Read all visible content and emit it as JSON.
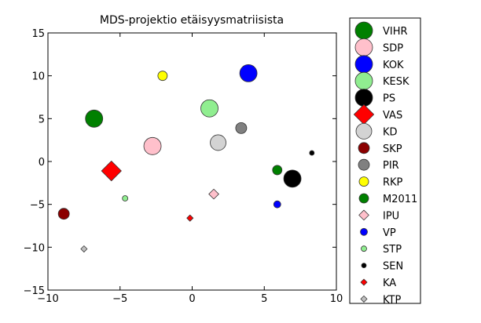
{
  "chart_data": {
    "type": "scatter",
    "title": "MDS-projektio etäisyysmatriisista",
    "xlabel": "",
    "ylabel": "",
    "xlim": [
      -10,
      10
    ],
    "ylim": [
      -15,
      15
    ],
    "xticks": [
      -10,
      -5,
      0,
      5,
      10
    ],
    "yticks": [
      -15,
      -10,
      -5,
      0,
      5,
      10,
      15
    ],
    "xtick_labels": [
      "−10",
      "−5",
      "0",
      "5",
      "10"
    ],
    "ytick_labels": [
      "−15",
      "−10",
      "−5",
      "0",
      "5",
      "10",
      "15"
    ],
    "grid": false,
    "legend_placement": "outside-right",
    "points": [
      {
        "name": "VIHR",
        "x": -6.8,
        "y": 5.0,
        "color": "#008000",
        "shape": "circle",
        "size": 11
      },
      {
        "name": "SDP",
        "x": -2.75,
        "y": 1.8,
        "color": "#ffc0cb",
        "shape": "circle",
        "size": 11
      },
      {
        "name": "KOK",
        "x": 3.9,
        "y": 10.3,
        "color": "#0000ff",
        "shape": "circle",
        "size": 11
      },
      {
        "name": "KESK",
        "x": 1.2,
        "y": 6.2,
        "color": "#90ee90",
        "shape": "circle",
        "size": 11
      },
      {
        "name": "PS",
        "x": 6.95,
        "y": -2.0,
        "color": "#000000",
        "shape": "circle",
        "size": 11
      },
      {
        "name": "VAS",
        "x": -5.6,
        "y": -1.1,
        "color": "#ff0000",
        "shape": "diamond",
        "size": 11
      },
      {
        "name": "KD",
        "x": 1.8,
        "y": 2.2,
        "color": "#d3d3d3",
        "shape": "circle",
        "size": 10
      },
      {
        "name": "SKP",
        "x": -8.9,
        "y": -6.1,
        "color": "#8b0000",
        "shape": "circle",
        "size": 7
      },
      {
        "name": "PIR",
        "x": 3.4,
        "y": 3.9,
        "color": "#808080",
        "shape": "circle",
        "size": 7
      },
      {
        "name": "RKP",
        "x": -2.05,
        "y": 10.0,
        "color": "#ffff00",
        "shape": "circle",
        "size": 6
      },
      {
        "name": "M2011",
        "x": 5.9,
        "y": -1.0,
        "color": "#008000",
        "shape": "circle",
        "size": 6
      },
      {
        "name": "IPU",
        "x": 1.5,
        "y": -3.8,
        "color": "#ffc0cb",
        "shape": "diamond",
        "size": 5.5
      },
      {
        "name": "VP",
        "x": 5.9,
        "y": -5.0,
        "color": "#0000ff",
        "shape": "circle",
        "size": 4.5
      },
      {
        "name": "STP",
        "x": -4.65,
        "y": -4.3,
        "color": "#90ee90",
        "shape": "circle",
        "size": 3.5
      },
      {
        "name": "SEN",
        "x": 8.3,
        "y": 1.0,
        "color": "#000000",
        "shape": "circle",
        "size": 3
      },
      {
        "name": "KA",
        "x": -0.15,
        "y": -6.6,
        "color": "#ff0000",
        "shape": "diamond",
        "size": 3.5
      },
      {
        "name": "KTP",
        "x": -7.5,
        "y": -10.2,
        "color": "#c0c0c0",
        "shape": "diamond",
        "size": 3.5
      }
    ]
  }
}
